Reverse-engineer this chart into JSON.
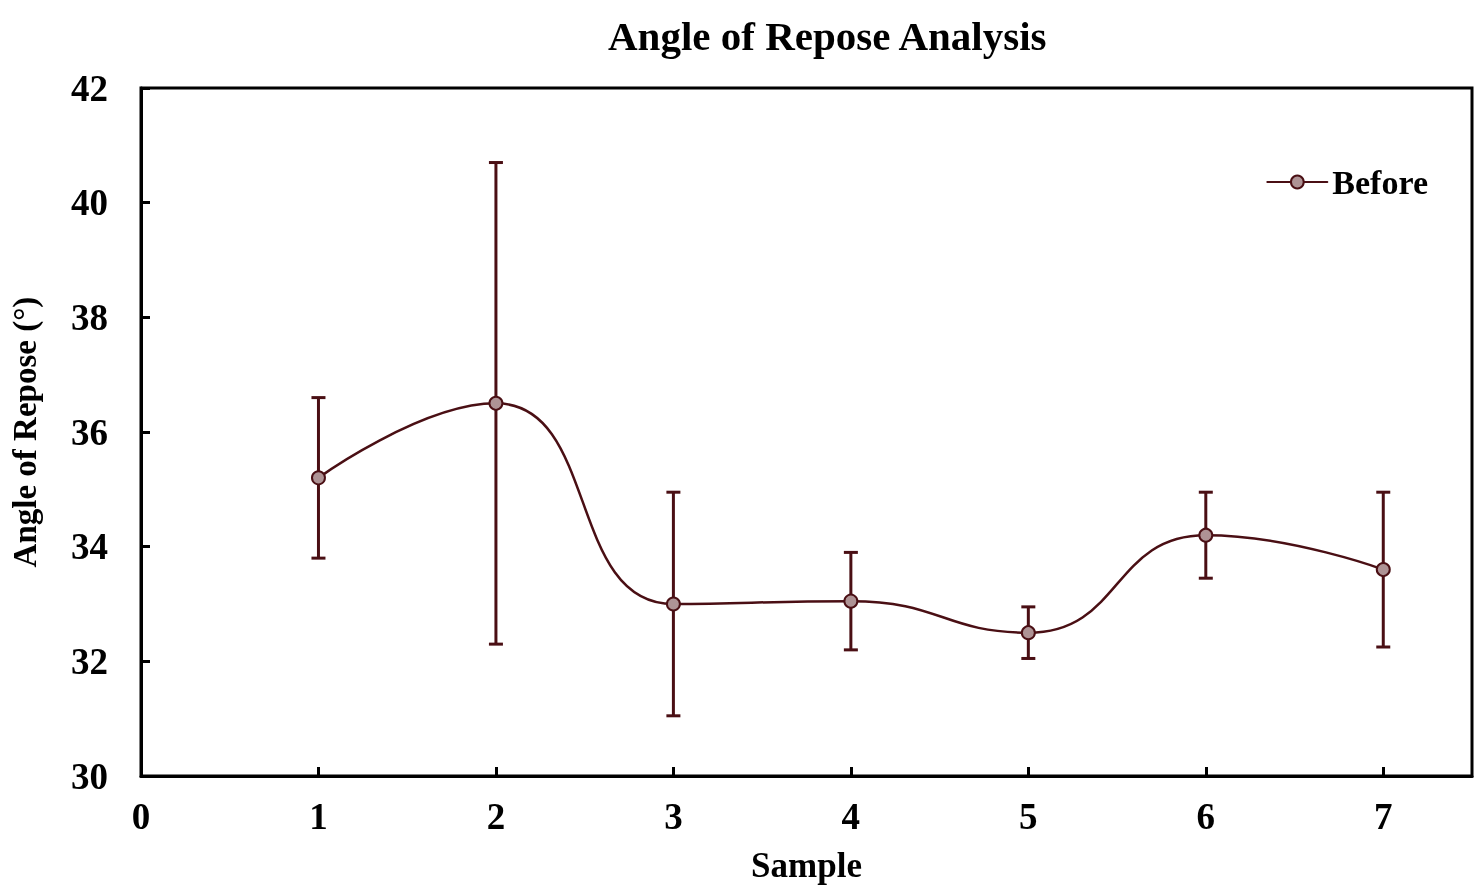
{
  "chart_data": {
    "type": "line",
    "title": "Angle of Repose Analysis",
    "xlabel": "Sample",
    "ylabel": "Angle of Repose (°)",
    "x": [
      1,
      2,
      3,
      4,
      5,
      6,
      7
    ],
    "series": [
      {
        "name": "Before",
        "color": "#4a0f14",
        "values": [
          35.2,
          36.5,
          33.0,
          33.05,
          32.5,
          34.2,
          33.6
        ],
        "errors": [
          1.4,
          4.2,
          1.95,
          0.85,
          0.45,
          0.75,
          1.35
        ]
      }
    ],
    "xlim": [
      0,
      7.5
    ],
    "xticks": [
      0,
      1,
      2,
      3,
      4,
      5,
      6,
      7
    ],
    "ylim": [
      30,
      42
    ],
    "yticks": [
      30,
      32,
      34,
      36,
      38,
      40,
      42
    ],
    "grid": false,
    "legend": "top right",
    "marker": "circle",
    "line_style": "solid"
  }
}
